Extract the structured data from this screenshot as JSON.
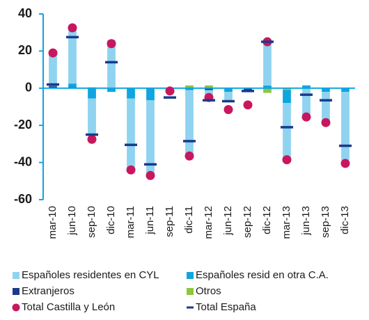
{
  "chart_data": {
    "type": "bar",
    "stacked": true,
    "categories": [
      "mar-10",
      "jun-10",
      "sep-10",
      "dic-10",
      "mar-11",
      "jun-11",
      "sep-11",
      "dic-11",
      "mar-12",
      "jun-12",
      "sep-12",
      "dic-12",
      "mar-13",
      "jun-13",
      "sep-13",
      "dic-13"
    ],
    "series": [
      {
        "name": "Españoles residentes en CYL",
        "color": "#8fd3f0",
        "kind": "bar",
        "values": [
          17,
          30,
          -20,
          26,
          -38,
          -40,
          -1,
          -35,
          -5,
          -5,
          -0.5,
          24,
          -30,
          -15,
          -16,
          -37
        ]
      },
      {
        "name": "Españoles resid en otra C.A.",
        "color": "#0ea5e0",
        "kind": "bar",
        "values": [
          1,
          2,
          -5.5,
          -2,
          -5.5,
          -6.5,
          -0.5,
          -1,
          0,
          -2,
          0,
          1.5,
          -7,
          1.5,
          -2,
          -2
        ]
      },
      {
        "name": "Extranjeros",
        "color": "#1a3a8a",
        "kind": "bar",
        "values": [
          1,
          0.5,
          0,
          0,
          0,
          0,
          0,
          0,
          -1,
          0,
          -1.5,
          0,
          0,
          0,
          0,
          0
        ]
      },
      {
        "name": "Otros",
        "color": "#8cc63f",
        "kind": "bar",
        "values": [
          0,
          0,
          0.5,
          0,
          0,
          0,
          0,
          1.5,
          1.5,
          0,
          0,
          -2.5,
          -1,
          0,
          0,
          0
        ]
      },
      {
        "name": "Total Castilla y León",
        "color": "#c8175d",
        "kind": "dot",
        "values": [
          19,
          32.5,
          -27.5,
          24,
          -44,
          -47,
          -1.5,
          -36.5,
          -5,
          -11.5,
          -9,
          25,
          -38.5,
          -15.5,
          -18.5,
          -40.5
        ]
      },
      {
        "name": "Total España",
        "color": "#1a3a8a",
        "kind": "dash",
        "values": [
          2,
          27.5,
          -25,
          14,
          -30.5,
          -41,
          -5,
          -28.5,
          -6.5,
          -7,
          -1.5,
          25,
          -21,
          -3.5,
          -6.5,
          -31
        ]
      }
    ],
    "ylim": [
      -60,
      40
    ],
    "yticks": [
      40,
      20,
      0,
      -20,
      -40,
      -60
    ]
  }
}
